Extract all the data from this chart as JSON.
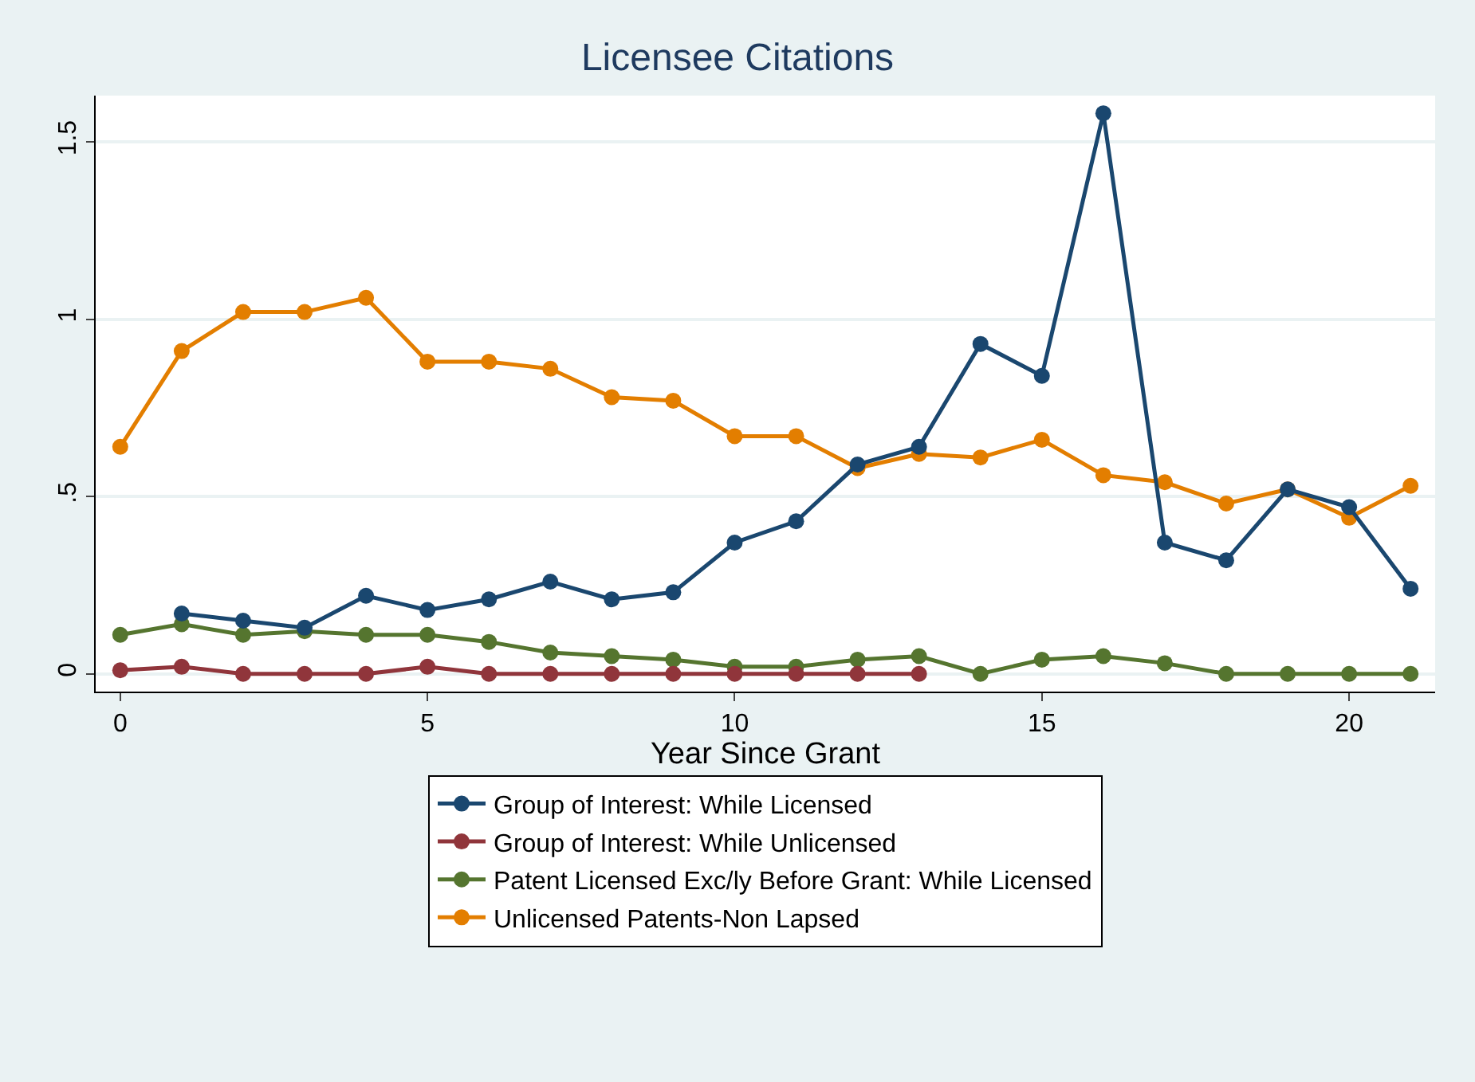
{
  "chart_data": {
    "type": "line",
    "title": "Licensee Citations",
    "xlabel": "Year Since Grant",
    "x": [
      0,
      1,
      2,
      3,
      4,
      5,
      6,
      7,
      8,
      9,
      10,
      11,
      12,
      13,
      14,
      15,
      16,
      17,
      18,
      19,
      20,
      21
    ],
    "series": [
      {
        "name": "Group of Interest: While Licensed",
        "color": "#1a476f",
        "values": [
          null,
          0.17,
          0.15,
          0.13,
          0.22,
          0.18,
          0.21,
          0.26,
          0.21,
          0.23,
          0.37,
          0.43,
          0.59,
          0.64,
          0.93,
          0.84,
          1.58,
          0.37,
          0.32,
          0.52,
          0.47,
          0.24
        ]
      },
      {
        "name": "Group of Interest: While Unlicensed",
        "color": "#90353b",
        "values": [
          0.01,
          0.02,
          0,
          0,
          0,
          0.02,
          0,
          0,
          0,
          0,
          0,
          0,
          0,
          0,
          null,
          null,
          null,
          null,
          null,
          null,
          null,
          null
        ]
      },
      {
        "name": "Patent Licensed Exc/ly Before Grant: While Licensed",
        "color": "#55752f",
        "values": [
          0.11,
          0.14,
          0.11,
          0.12,
          0.11,
          0.11,
          0.09,
          0.06,
          0.05,
          0.04,
          0.02,
          0.02,
          0.04,
          0.05,
          0,
          0.04,
          0.05,
          0.03,
          0,
          0,
          0,
          0
        ]
      },
      {
        "name": "Unlicensed Patents-Non Lapsed",
        "color": "#e37e00",
        "values": [
          0.64,
          0.91,
          1.02,
          1.02,
          1.06,
          0.88,
          0.88,
          0.86,
          0.78,
          0.77,
          0.67,
          0.67,
          0.58,
          0.62,
          0.61,
          0.66,
          0.56,
          0.54,
          0.48,
          0.52,
          0.44,
          0.53
        ]
      }
    ],
    "xlim": [
      -0.4,
      21.4
    ],
    "xticks": [
      0,
      5,
      10,
      15,
      20
    ],
    "ylim": [
      -0.05,
      1.63
    ],
    "yticks": [
      0,
      {
        "value": 0.5,
        "label": ".5"
      },
      {
        "value": 1,
        "label": "1"
      },
      1.5
    ],
    "grid": "y",
    "legend": "bottom",
    "marker": "circle",
    "line_style": "solid"
  }
}
